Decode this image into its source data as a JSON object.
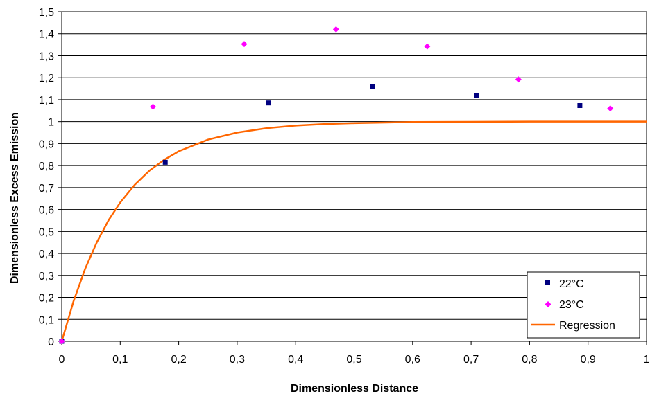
{
  "chart_data": {
    "type": "scatter",
    "title": "",
    "xlabel": "Dimensionless Distance",
    "ylabel": "Dimensionless Excess Emission",
    "xlim": [
      0,
      1
    ],
    "ylim": [
      0,
      1.5
    ],
    "x_ticks": [
      "0",
      "0,1",
      "0,2",
      "0,3",
      "0,4",
      "0,5",
      "0,6",
      "0,7",
      "0,8",
      "0,9",
      "1"
    ],
    "y_ticks": [
      "0",
      "0,1",
      "0,2",
      "0,3",
      "0,4",
      "0,5",
      "0,6",
      "0,7",
      "0,8",
      "0,9",
      "1",
      "1,1",
      "1,2",
      "1,3",
      "1,4",
      "1,5"
    ],
    "grid": "horizontal",
    "legend_position": "bottom-right",
    "series": [
      {
        "name": "22°C",
        "kind": "points",
        "marker": "square",
        "color": "#000080",
        "x": [
          0,
          0.177,
          0.354,
          0.532,
          0.709,
          0.886
        ],
        "y": [
          0,
          0.815,
          1.085,
          1.16,
          1.12,
          1.073
        ]
      },
      {
        "name": "23°C",
        "kind": "points",
        "marker": "diamond",
        "color": "#ff00ff",
        "x": [
          0,
          0.156,
          0.312,
          0.469,
          0.625,
          0.781,
          0.938
        ],
        "y": [
          0,
          1.068,
          1.353,
          1.42,
          1.342,
          1.192,
          1.06
        ]
      },
      {
        "name": "Regression",
        "kind": "line",
        "color": "#ff6600",
        "x": [
          0,
          0.02,
          0.04,
          0.06,
          0.08,
          0.1,
          0.125,
          0.15,
          0.175,
          0.2,
          0.25,
          0.3,
          0.35,
          0.4,
          0.45,
          0.5,
          0.6,
          0.7,
          0.8,
          0.9,
          1
        ],
        "y": [
          0,
          0.181,
          0.33,
          0.451,
          0.551,
          0.632,
          0.713,
          0.777,
          0.826,
          0.865,
          0.918,
          0.95,
          0.97,
          0.982,
          0.989,
          0.993,
          0.998,
          0.999,
          1.0,
          1.0,
          1.0
        ]
      }
    ]
  }
}
